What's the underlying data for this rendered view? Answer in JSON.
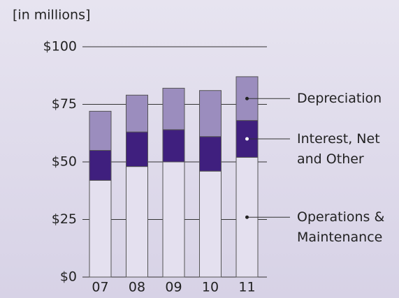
{
  "chart_data": {
    "type": "stacked_bar",
    "subtitle": "[in millions]",
    "categories": [
      "07",
      "08",
      "09",
      "10",
      "11"
    ],
    "series": [
      {
        "name": "Operations & Maintenance",
        "color": "#e4e0ef",
        "values": [
          42,
          48,
          50,
          46,
          52
        ]
      },
      {
        "name": "Interest, Net and Other",
        "color": "#3f1f7e",
        "values": [
          13,
          15,
          14,
          15,
          16
        ]
      },
      {
        "name": "Depreciation",
        "color": "#9b8dbe",
        "values": [
          17,
          16,
          18,
          20,
          19
        ]
      }
    ],
    "ylim": [
      0,
      100
    ],
    "yticks": [
      {
        "value": 0,
        "label": "$0"
      },
      {
        "value": 25,
        "label": "$25"
      },
      {
        "value": 50,
        "label": "$50"
      },
      {
        "value": 75,
        "label": "$75"
      },
      {
        "value": 100,
        "label": "$100"
      }
    ],
    "grid": true
  }
}
